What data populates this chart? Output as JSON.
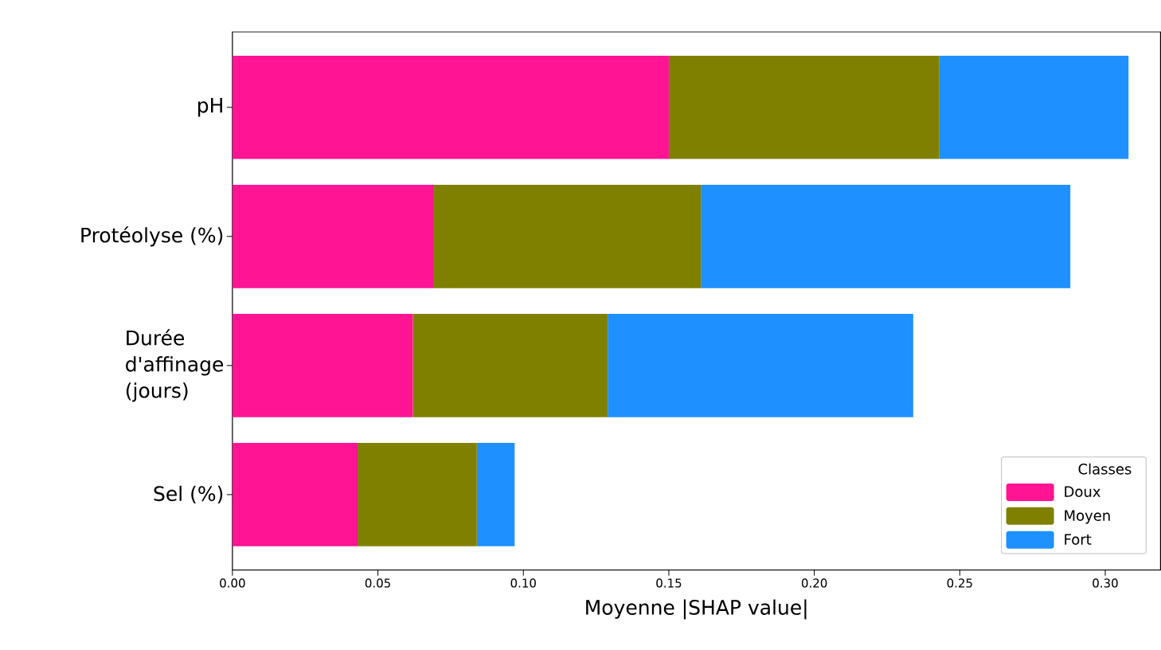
{
  "chart_data": {
    "type": "bar",
    "orientation": "horizontal",
    "stacked": true,
    "xlabel": "Moyenne |SHAP value|",
    "legend_title": "Classes",
    "legend": "bottom right",
    "categories": [
      "pH",
      "Protéolyse (%)",
      "Durée d'affinage (jours)",
      "Sel (%)"
    ],
    "series": [
      {
        "name": "Doux",
        "color": "#ff1493",
        "values": [
          0.15,
          0.069,
          0.062,
          0.043
        ]
      },
      {
        "name": "Moyen",
        "color": "#808000",
        "values": [
          0.093,
          0.092,
          0.067,
          0.041
        ]
      },
      {
        "name": "Fort",
        "color": "#1e90ff",
        "values": [
          0.065,
          0.127,
          0.105,
          0.013
        ]
      }
    ],
    "xlim": [
      0,
      0.319
    ],
    "xticks": [
      {
        "value": 0,
        "label": "0.00"
      },
      {
        "value": 0.05,
        "label": "0.05"
      },
      {
        "value": 0.1,
        "label": "0.10"
      },
      {
        "value": 0.15,
        "label": "0.15"
      },
      {
        "value": 0.2,
        "label": "0.20"
      },
      {
        "value": 0.25,
        "label": "0.25"
      },
      {
        "value": 0.3,
        "label": "0.30"
      }
    ]
  }
}
